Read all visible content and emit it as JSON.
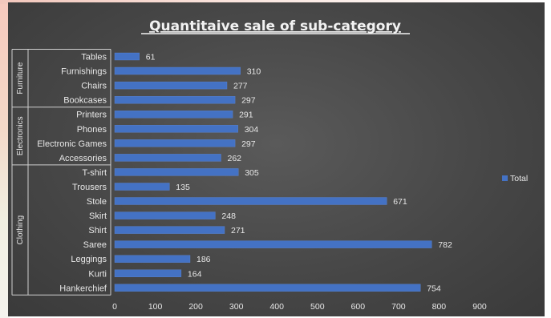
{
  "chart_data": {
    "type": "bar",
    "orientation": "horizontal",
    "title": "Quantitaive sale of sub-category",
    "xlim": [
      0,
      900
    ],
    "x_ticks": [
      0,
      100,
      200,
      300,
      400,
      500,
      600,
      700,
      800,
      900
    ],
    "grid": false,
    "legend_position": "right",
    "series": [
      {
        "name": "Total",
        "color": "#4472c4"
      }
    ],
    "groups": [
      {
        "name": "Furniture",
        "items": [
          {
            "label": "Tables",
            "value": 61
          },
          {
            "label": "Furnishings",
            "value": 310
          },
          {
            "label": "Chairs",
            "value": 277
          },
          {
            "label": "Bookcases",
            "value": 297
          }
        ]
      },
      {
        "name": "Electronics",
        "items": [
          {
            "label": "Printers",
            "value": 291
          },
          {
            "label": "Phones",
            "value": 304
          },
          {
            "label": "Electronic Games",
            "value": 297
          },
          {
            "label": "Accessories",
            "value": 262
          }
        ]
      },
      {
        "name": "Clothing",
        "items": [
          {
            "label": "T-shirt",
            "value": 305
          },
          {
            "label": "Trousers",
            "value": 135
          },
          {
            "label": "Stole",
            "value": 671
          },
          {
            "label": "Skirt",
            "value": 248
          },
          {
            "label": "Shirt",
            "value": 271
          },
          {
            "label": "Saree",
            "value": 782
          },
          {
            "label": "Leggings",
            "value": 186
          },
          {
            "label": "Kurti",
            "value": 164
          },
          {
            "label": "Hankerchief",
            "value": 754
          }
        ]
      }
    ]
  }
}
